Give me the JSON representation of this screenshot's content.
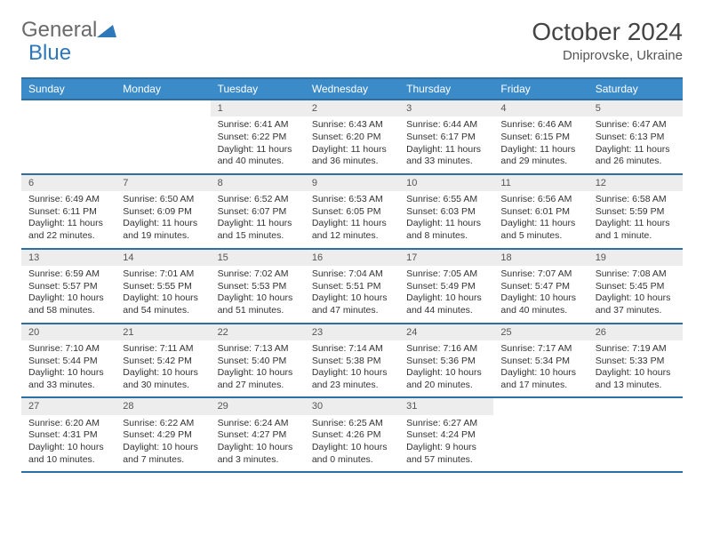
{
  "logo": {
    "word1": "General",
    "word2": "Blue"
  },
  "title": "October 2024",
  "subtitle": "Dniprovske, Ukraine",
  "header_bg": "#3b8bc9",
  "header_border": "#2e6fa3",
  "daynum_bg": "#ededed",
  "day_names": [
    "Sunday",
    "Monday",
    "Tuesday",
    "Wednesday",
    "Thursday",
    "Friday",
    "Saturday"
  ],
  "weeks": [
    [
      null,
      null,
      {
        "n": "1",
        "sr": "Sunrise: 6:41 AM",
        "ss": "Sunset: 6:22 PM",
        "dl": "Daylight: 11 hours and 40 minutes."
      },
      {
        "n": "2",
        "sr": "Sunrise: 6:43 AM",
        "ss": "Sunset: 6:20 PM",
        "dl": "Daylight: 11 hours and 36 minutes."
      },
      {
        "n": "3",
        "sr": "Sunrise: 6:44 AM",
        "ss": "Sunset: 6:17 PM",
        "dl": "Daylight: 11 hours and 33 minutes."
      },
      {
        "n": "4",
        "sr": "Sunrise: 6:46 AM",
        "ss": "Sunset: 6:15 PM",
        "dl": "Daylight: 11 hours and 29 minutes."
      },
      {
        "n": "5",
        "sr": "Sunrise: 6:47 AM",
        "ss": "Sunset: 6:13 PM",
        "dl": "Daylight: 11 hours and 26 minutes."
      }
    ],
    [
      {
        "n": "6",
        "sr": "Sunrise: 6:49 AM",
        "ss": "Sunset: 6:11 PM",
        "dl": "Daylight: 11 hours and 22 minutes."
      },
      {
        "n": "7",
        "sr": "Sunrise: 6:50 AM",
        "ss": "Sunset: 6:09 PM",
        "dl": "Daylight: 11 hours and 19 minutes."
      },
      {
        "n": "8",
        "sr": "Sunrise: 6:52 AM",
        "ss": "Sunset: 6:07 PM",
        "dl": "Daylight: 11 hours and 15 minutes."
      },
      {
        "n": "9",
        "sr": "Sunrise: 6:53 AM",
        "ss": "Sunset: 6:05 PM",
        "dl": "Daylight: 11 hours and 12 minutes."
      },
      {
        "n": "10",
        "sr": "Sunrise: 6:55 AM",
        "ss": "Sunset: 6:03 PM",
        "dl": "Daylight: 11 hours and 8 minutes."
      },
      {
        "n": "11",
        "sr": "Sunrise: 6:56 AM",
        "ss": "Sunset: 6:01 PM",
        "dl": "Daylight: 11 hours and 5 minutes."
      },
      {
        "n": "12",
        "sr": "Sunrise: 6:58 AM",
        "ss": "Sunset: 5:59 PM",
        "dl": "Daylight: 11 hours and 1 minute."
      }
    ],
    [
      {
        "n": "13",
        "sr": "Sunrise: 6:59 AM",
        "ss": "Sunset: 5:57 PM",
        "dl": "Daylight: 10 hours and 58 minutes."
      },
      {
        "n": "14",
        "sr": "Sunrise: 7:01 AM",
        "ss": "Sunset: 5:55 PM",
        "dl": "Daylight: 10 hours and 54 minutes."
      },
      {
        "n": "15",
        "sr": "Sunrise: 7:02 AM",
        "ss": "Sunset: 5:53 PM",
        "dl": "Daylight: 10 hours and 51 minutes."
      },
      {
        "n": "16",
        "sr": "Sunrise: 7:04 AM",
        "ss": "Sunset: 5:51 PM",
        "dl": "Daylight: 10 hours and 47 minutes."
      },
      {
        "n": "17",
        "sr": "Sunrise: 7:05 AM",
        "ss": "Sunset: 5:49 PM",
        "dl": "Daylight: 10 hours and 44 minutes."
      },
      {
        "n": "18",
        "sr": "Sunrise: 7:07 AM",
        "ss": "Sunset: 5:47 PM",
        "dl": "Daylight: 10 hours and 40 minutes."
      },
      {
        "n": "19",
        "sr": "Sunrise: 7:08 AM",
        "ss": "Sunset: 5:45 PM",
        "dl": "Daylight: 10 hours and 37 minutes."
      }
    ],
    [
      {
        "n": "20",
        "sr": "Sunrise: 7:10 AM",
        "ss": "Sunset: 5:44 PM",
        "dl": "Daylight: 10 hours and 33 minutes."
      },
      {
        "n": "21",
        "sr": "Sunrise: 7:11 AM",
        "ss": "Sunset: 5:42 PM",
        "dl": "Daylight: 10 hours and 30 minutes."
      },
      {
        "n": "22",
        "sr": "Sunrise: 7:13 AM",
        "ss": "Sunset: 5:40 PM",
        "dl": "Daylight: 10 hours and 27 minutes."
      },
      {
        "n": "23",
        "sr": "Sunrise: 7:14 AM",
        "ss": "Sunset: 5:38 PM",
        "dl": "Daylight: 10 hours and 23 minutes."
      },
      {
        "n": "24",
        "sr": "Sunrise: 7:16 AM",
        "ss": "Sunset: 5:36 PM",
        "dl": "Daylight: 10 hours and 20 minutes."
      },
      {
        "n": "25",
        "sr": "Sunrise: 7:17 AM",
        "ss": "Sunset: 5:34 PM",
        "dl": "Daylight: 10 hours and 17 minutes."
      },
      {
        "n": "26",
        "sr": "Sunrise: 7:19 AM",
        "ss": "Sunset: 5:33 PM",
        "dl": "Daylight: 10 hours and 13 minutes."
      }
    ],
    [
      {
        "n": "27",
        "sr": "Sunrise: 6:20 AM",
        "ss": "Sunset: 4:31 PM",
        "dl": "Daylight: 10 hours and 10 minutes."
      },
      {
        "n": "28",
        "sr": "Sunrise: 6:22 AM",
        "ss": "Sunset: 4:29 PM",
        "dl": "Daylight: 10 hours and 7 minutes."
      },
      {
        "n": "29",
        "sr": "Sunrise: 6:24 AM",
        "ss": "Sunset: 4:27 PM",
        "dl": "Daylight: 10 hours and 3 minutes."
      },
      {
        "n": "30",
        "sr": "Sunrise: 6:25 AM",
        "ss": "Sunset: 4:26 PM",
        "dl": "Daylight: 10 hours and 0 minutes."
      },
      {
        "n": "31",
        "sr": "Sunrise: 6:27 AM",
        "ss": "Sunset: 4:24 PM",
        "dl": "Daylight: 9 hours and 57 minutes."
      },
      null,
      null
    ]
  ]
}
